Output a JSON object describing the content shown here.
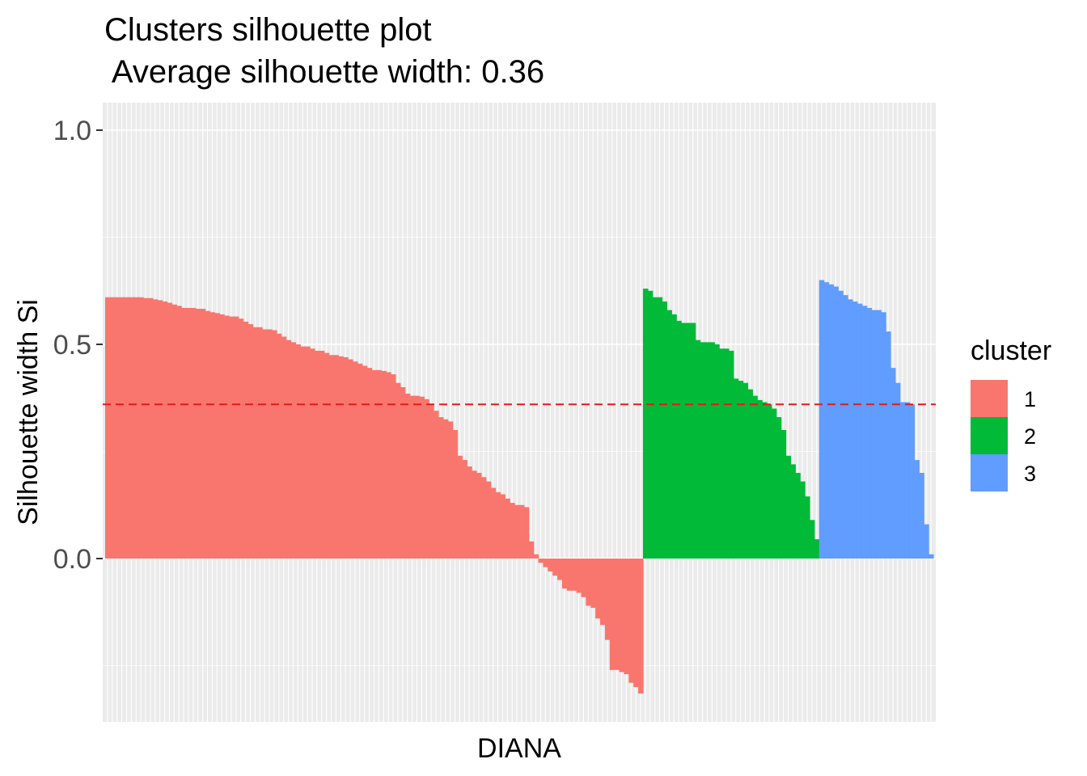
{
  "chart_data": {
    "type": "bar",
    "title": "Clusters silhouette plot",
    "subtitle": " Average silhouette width: 0.36",
    "xlabel": "DIANA",
    "ylabel": "Silhouette width Si",
    "ylim": [
      -0.37,
      1.07
    ],
    "yticks": [
      0.0,
      0.5,
      1.0
    ],
    "ytick_labels": [
      "0.0",
      "0.5",
      "1.0"
    ],
    "reference_line": {
      "y": 0.36,
      "color": "#E41A1C",
      "style": "dashed"
    },
    "grid": true,
    "legend": {
      "title": "cluster",
      "position": "right"
    },
    "series": [
      {
        "name": "1",
        "color": "#F8766D",
        "values": [
          0.61,
          0.61,
          0.61,
          0.61,
          0.61,
          0.61,
          0.61,
          0.61,
          0.608,
          0.608,
          0.605,
          0.603,
          0.6,
          0.597,
          0.593,
          0.59,
          0.585,
          0.585,
          0.585,
          0.583,
          0.583,
          0.578,
          0.575,
          0.573,
          0.57,
          0.567,
          0.565,
          0.565,
          0.56,
          0.553,
          0.547,
          0.54,
          0.54,
          0.535,
          0.535,
          0.533,
          0.525,
          0.518,
          0.51,
          0.505,
          0.5,
          0.495,
          0.495,
          0.49,
          0.485,
          0.485,
          0.48,
          0.475,
          0.475,
          0.472,
          0.47,
          0.465,
          0.46,
          0.455,
          0.45,
          0.445,
          0.44,
          0.44,
          0.438,
          0.435,
          0.43,
          0.41,
          0.4,
          0.385,
          0.38,
          0.38,
          0.378,
          0.372,
          0.36,
          0.345,
          0.33,
          0.325,
          0.32,
          0.3,
          0.24,
          0.23,
          0.215,
          0.205,
          0.2,
          0.19,
          0.18,
          0.165,
          0.155,
          0.15,
          0.14,
          0.13,
          0.125,
          0.125,
          0.12,
          0.04,
          0.01,
          -0.01,
          -0.02,
          -0.03,
          -0.04,
          -0.05,
          -0.07,
          -0.075,
          -0.075,
          -0.08,
          -0.09,
          -0.11,
          -0.115,
          -0.14,
          -0.155,
          -0.19,
          -0.26,
          -0.26,
          -0.265,
          -0.27,
          -0.29,
          -0.3,
          -0.315
        ]
      },
      {
        "name": "2",
        "color": "#00BA38",
        "values": [
          0.63,
          0.625,
          0.61,
          0.61,
          0.6,
          0.58,
          0.57,
          0.555,
          0.55,
          0.55,
          0.55,
          0.51,
          0.505,
          0.505,
          0.505,
          0.5,
          0.49,
          0.49,
          0.485,
          0.42,
          0.415,
          0.41,
          0.395,
          0.38,
          0.37,
          0.365,
          0.36,
          0.35,
          0.33,
          0.3,
          0.24,
          0.22,
          0.2,
          0.18,
          0.145,
          0.09,
          0.045
        ]
      },
      {
        "name": "3",
        "color": "#619CFF",
        "values": [
          0.65,
          0.645,
          0.64,
          0.635,
          0.625,
          0.615,
          0.605,
          0.6,
          0.595,
          0.59,
          0.585,
          0.58,
          0.58,
          0.575,
          0.53,
          0.445,
          0.41,
          0.365,
          0.365,
          0.36,
          0.23,
          0.2,
          0.08,
          0.01
        ]
      }
    ]
  }
}
